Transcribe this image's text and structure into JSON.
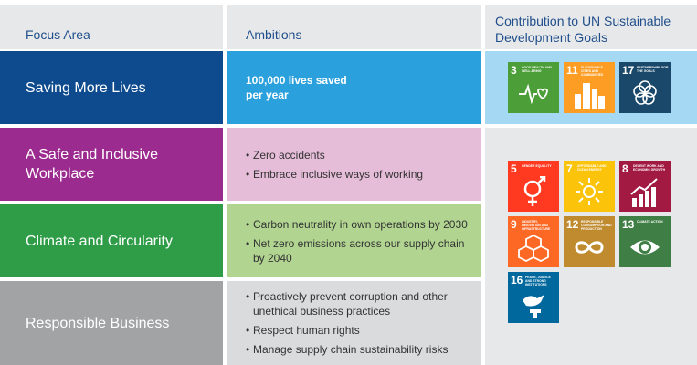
{
  "headers": {
    "focus": "Focus Area",
    "ambitions": "Ambitions",
    "sdg": "Contribution to UN Sustainable Development Goals"
  },
  "rows": [
    {
      "focus": "Saving More Lives",
      "ambition": "100,000 lives saved per year"
    },
    {
      "focus": "A Safe and Inclusive Workplace",
      "ambitions": [
        "Zero accidents",
        "Embrace inclusive ways of working"
      ]
    },
    {
      "focus": "Climate and Circularity",
      "ambitions": [
        "Carbon neutrality in own operations by 2030",
        "Net zero emissions across our supply chain by 2040"
      ]
    },
    {
      "focus": "Responsible Business",
      "ambitions": [
        "Proactively prevent corruption and other unethical business practices",
        "Respect human rights",
        "Manage supply chain sustainability risks"
      ]
    }
  ],
  "sdg_tiles": [
    {
      "num": "3",
      "label": "Good health and well-being",
      "color": "#4c9f38",
      "icon": "heartbeat-icon"
    },
    {
      "num": "11",
      "label": "Sustainable cities and communities",
      "color": "#fd9d24",
      "icon": "city-icon"
    },
    {
      "num": "17",
      "label": "Partnerships for the goals",
      "color": "#19486a",
      "icon": "partnership-flower-icon"
    },
    {
      "num": "5",
      "label": "Gender equality",
      "color": "#ff3a21",
      "icon": "gender-symbol-icon"
    },
    {
      "num": "7",
      "label": "Affordable and clean energy",
      "color": "#fcc30b",
      "icon": "sun-power-icon"
    },
    {
      "num": "8",
      "label": "Decent work and economic growth",
      "color": "#a21942",
      "icon": "growth-chart-icon"
    },
    {
      "num": "9",
      "label": "Industry, innovation and infrastructure",
      "color": "#fd6925",
      "icon": "cubes-icon"
    },
    {
      "num": "12",
      "label": "Responsible consumption and production",
      "color": "#bf8b2e",
      "icon": "infinity-icon"
    },
    {
      "num": "13",
      "label": "Climate action",
      "color": "#3f7e44",
      "icon": "eye-globe-icon"
    },
    {
      "num": "16",
      "label": "Peace, justice and strong institutions",
      "color": "#00689d",
      "icon": "dove-gavel-icon"
    }
  ]
}
